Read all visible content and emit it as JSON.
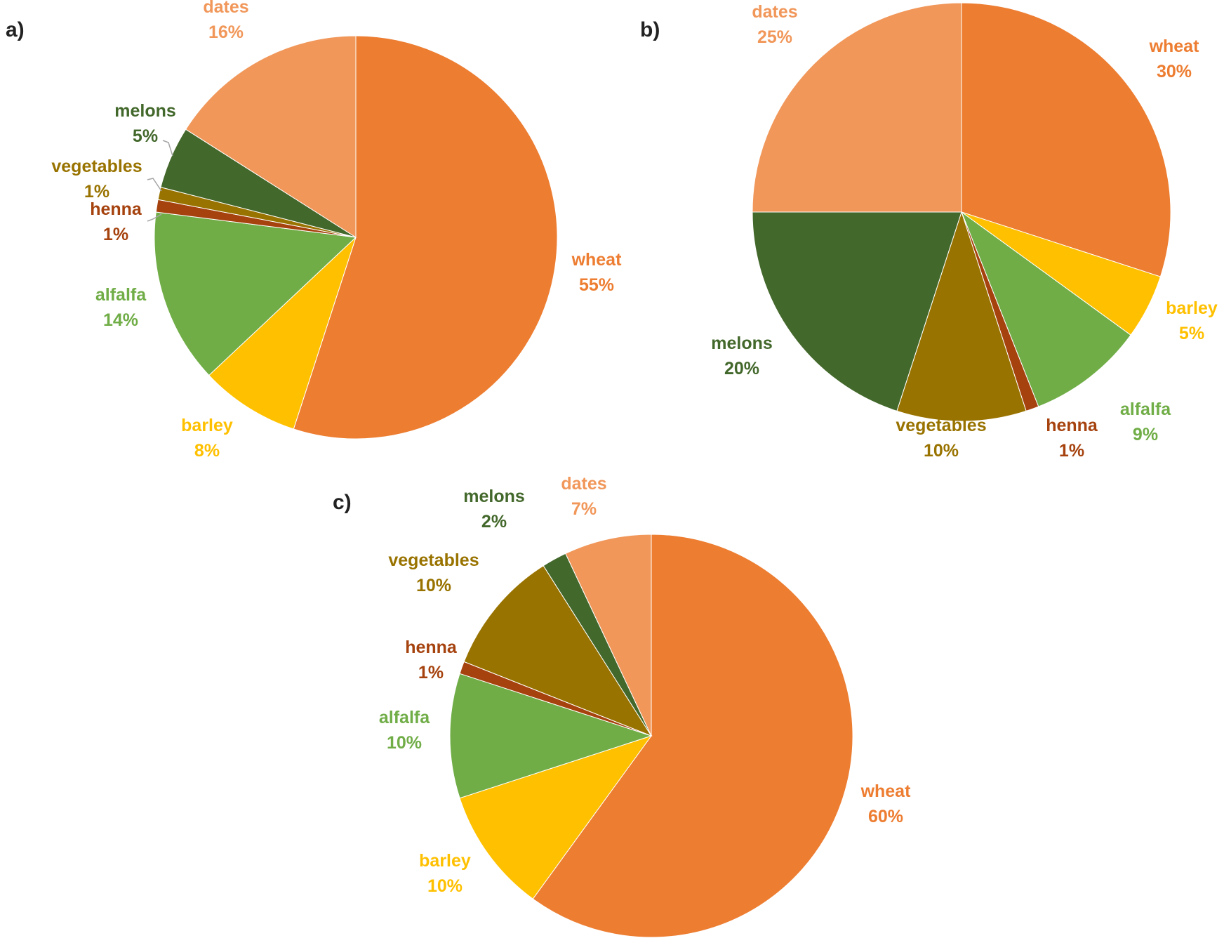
{
  "colors": {
    "wheat": "#ED7D31",
    "barley": "#FFC000",
    "alfalfa": "#70AD47",
    "henna": "#A5420E",
    "vegetables": "#997300",
    "melons": "#43682B",
    "dates": "#F1975A"
  },
  "chart_data": [
    {
      "type": "pie",
      "panel": "a)",
      "slices": [
        {
          "name": "wheat",
          "value": 55,
          "label": "55%"
        },
        {
          "name": "barley",
          "value": 8,
          "label": "8%"
        },
        {
          "name": "alfalfa",
          "value": 14,
          "label": "14%"
        },
        {
          "name": "henna",
          "value": 1,
          "label": "1%"
        },
        {
          "name": "vegetables",
          "value": 1,
          "label": "1%"
        },
        {
          "name": "melons",
          "value": 5,
          "label": "5%"
        },
        {
          "name": "dates",
          "value": 16,
          "label": "16%"
        }
      ]
    },
    {
      "type": "pie",
      "panel": "b)",
      "slices": [
        {
          "name": "wheat",
          "value": 30,
          "label": "30%"
        },
        {
          "name": "barley",
          "value": 5,
          "label": "5%"
        },
        {
          "name": "alfalfa",
          "value": 9,
          "label": "9%"
        },
        {
          "name": "henna",
          "value": 1,
          "label": "1%"
        },
        {
          "name": "vegetables",
          "value": 10,
          "label": "10%"
        },
        {
          "name": "melons",
          "value": 20,
          "label": "20%"
        },
        {
          "name": "dates",
          "value": 25,
          "label": "25%"
        }
      ]
    },
    {
      "type": "pie",
      "panel": "c)",
      "slices": [
        {
          "name": "wheat",
          "value": 60,
          "label": "60%"
        },
        {
          "name": "barley",
          "value": 10,
          "label": "10%"
        },
        {
          "name": "alfalfa",
          "value": 10,
          "label": "10%"
        },
        {
          "name": "henna",
          "value": 1,
          "label": "1%"
        },
        {
          "name": "vegetables",
          "value": 10,
          "label": "10%"
        },
        {
          "name": "melons",
          "value": 2,
          "label": "2%"
        },
        {
          "name": "dates",
          "value": 7,
          "label": "7%"
        }
      ]
    }
  ]
}
